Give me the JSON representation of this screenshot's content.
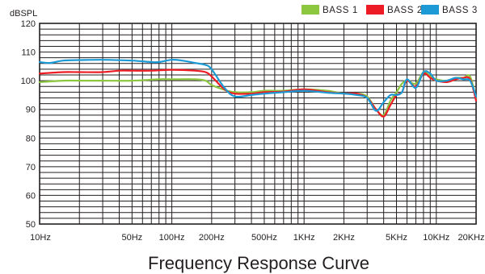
{
  "chart_data": {
    "type": "line",
    "title": "Frequency Response Curve",
    "ylabel": "dBSPL",
    "xlabel": "",
    "x_scale": "log",
    "xlim": [
      10,
      20000
    ],
    "ylim": [
      50,
      120
    ],
    "grid": true,
    "legend_position": "top-right",
    "y_ticks": [
      50,
      60,
      70,
      80,
      90,
      100,
      110,
      120
    ],
    "x_ticks": [
      {
        "value": 10,
        "label": "10Hz"
      },
      {
        "value": 50,
        "label": "50Hz"
      },
      {
        "value": 100,
        "label": "100Hz"
      },
      {
        "value": 200,
        "label": "200Hz"
      },
      {
        "value": 500,
        "label": "500Hz"
      },
      {
        "value": 1000,
        "label": "1KHz"
      },
      {
        "value": 2000,
        "label": "2KHz"
      },
      {
        "value": 5000,
        "label": "5KHz"
      },
      {
        "value": 10000,
        "label": "10KHz"
      },
      {
        "value": 20000,
        "label": "20KHz"
      }
    ],
    "series": [
      {
        "name": "BASS 1",
        "color": "#8dc63f",
        "points": [
          [
            10,
            99.5
          ],
          [
            15,
            100
          ],
          [
            20,
            100
          ],
          [
            30,
            100
          ],
          [
            50,
            100
          ],
          [
            80,
            100.5
          ],
          [
            100,
            100.5
          ],
          [
            150,
            100.5
          ],
          [
            180,
            100
          ],
          [
            200,
            98.5
          ],
          [
            250,
            96.8
          ],
          [
            300,
            96
          ],
          [
            400,
            96
          ],
          [
            500,
            96.5
          ],
          [
            700,
            96.5
          ],
          [
            1000,
            97
          ],
          [
            1500,
            96.5
          ],
          [
            2000,
            95.5
          ],
          [
            2500,
            95.5
          ],
          [
            3000,
            94.5
          ],
          [
            3500,
            90
          ],
          [
            4000,
            88
          ],
          [
            4500,
            93
          ],
          [
            5000,
            96
          ],
          [
            5500,
            99
          ],
          [
            6000,
            100
          ],
          [
            7000,
            99
          ],
          [
            8000,
            103
          ],
          [
            9000,
            101.5
          ],
          [
            10000,
            100.5
          ],
          [
            12000,
            100
          ],
          [
            14000,
            101
          ],
          [
            16000,
            101
          ],
          [
            18000,
            101.5
          ],
          [
            20000,
            93.5
          ]
        ]
      },
      {
        "name": "BASS 2",
        "color": "#ed1c24",
        "points": [
          [
            10,
            102.5
          ],
          [
            15,
            103
          ],
          [
            20,
            103
          ],
          [
            30,
            103
          ],
          [
            40,
            103.5
          ],
          [
            50,
            103.5
          ],
          [
            70,
            103.5
          ],
          [
            100,
            103.8
          ],
          [
            150,
            103.5
          ],
          [
            180,
            103
          ],
          [
            200,
            101.5
          ],
          [
            250,
            97
          ],
          [
            300,
            95.5
          ],
          [
            400,
            95.5
          ],
          [
            500,
            96
          ],
          [
            700,
            96.2
          ],
          [
            1000,
            97
          ],
          [
            1500,
            96
          ],
          [
            2000,
            95.5
          ],
          [
            2500,
            95.5
          ],
          [
            3000,
            94
          ],
          [
            3500,
            90
          ],
          [
            4000,
            87.5
          ],
          [
            4500,
            91.5
          ],
          [
            5000,
            95
          ],
          [
            5500,
            96
          ],
          [
            6000,
            100
          ],
          [
            7000,
            98
          ],
          [
            8000,
            102.5
          ],
          [
            9000,
            101
          ],
          [
            10000,
            100
          ],
          [
            12000,
            99.5
          ],
          [
            14000,
            100.5
          ],
          [
            16000,
            101
          ],
          [
            18000,
            100.5
          ],
          [
            20000,
            93
          ]
        ]
      },
      {
        "name": "BASS 3",
        "color": "#1c9ad6",
        "points": [
          [
            10,
            106.5
          ],
          [
            12,
            106.2
          ],
          [
            15,
            107
          ],
          [
            20,
            107.2
          ],
          [
            30,
            107.3
          ],
          [
            50,
            107
          ],
          [
            70,
            106.5
          ],
          [
            80,
            106.5
          ],
          [
            100,
            107.3
          ],
          [
            120,
            107
          ],
          [
            150,
            106.2
          ],
          [
            180,
            105.5
          ],
          [
            200,
            104
          ],
          [
            250,
            97.5
          ],
          [
            300,
            94.5
          ],
          [
            400,
            95
          ],
          [
            500,
            95.5
          ],
          [
            700,
            96
          ],
          [
            1000,
            96.5
          ],
          [
            1500,
            95.8
          ],
          [
            2000,
            95.5
          ],
          [
            2500,
            95
          ],
          [
            3000,
            94
          ],
          [
            3500,
            89.5
          ],
          [
            4000,
            92.5
          ],
          [
            4500,
            95
          ],
          [
            5000,
            95
          ],
          [
            5500,
            96
          ],
          [
            6000,
            100.5
          ],
          [
            7000,
            97.5
          ],
          [
            8000,
            103
          ],
          [
            9000,
            102.5
          ],
          [
            10000,
            100
          ],
          [
            12000,
            100
          ],
          [
            14000,
            101
          ],
          [
            16000,
            100.5
          ],
          [
            18000,
            100
          ],
          [
            20000,
            94.5
          ]
        ]
      }
    ]
  }
}
